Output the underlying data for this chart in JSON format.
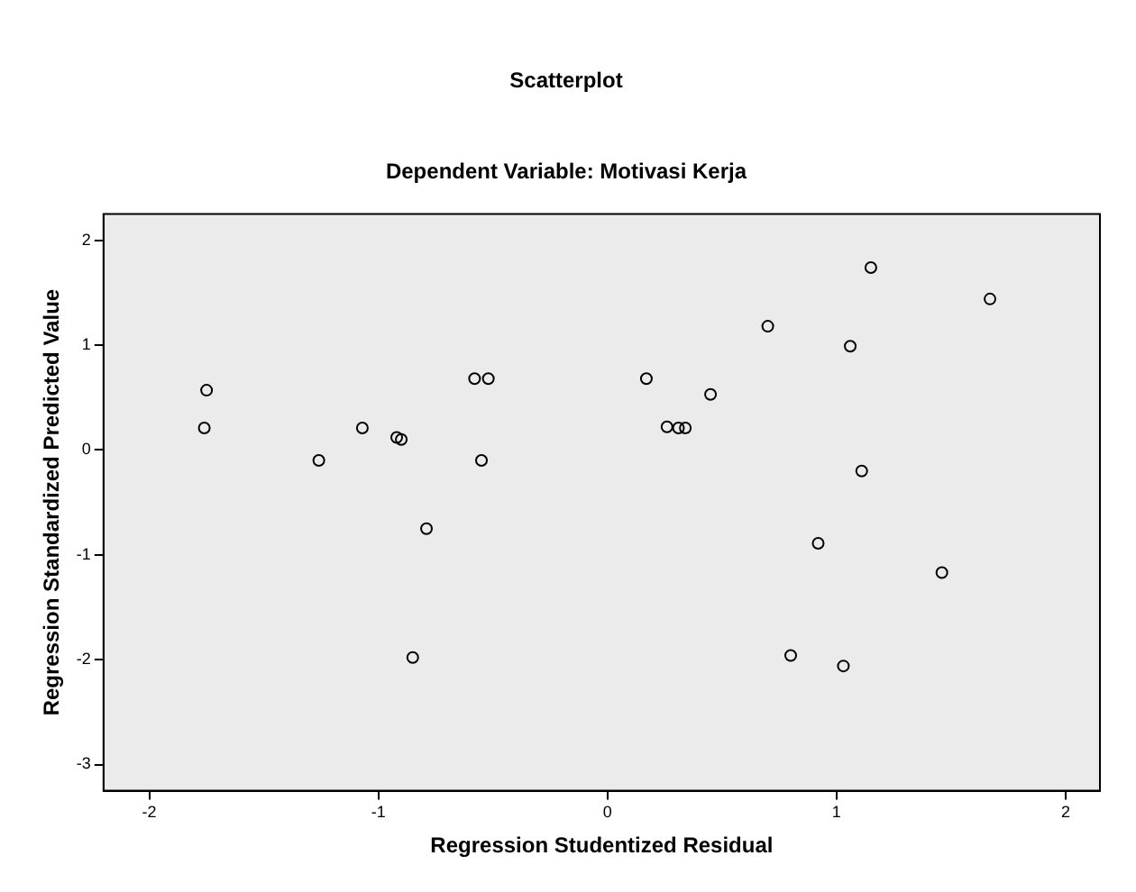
{
  "chart_data": {
    "type": "scatter",
    "title": "Scatterplot",
    "subtitle": "Dependent Variable: Motivasi Kerja",
    "xlabel": "Regression Studentized Residual",
    "ylabel": "Regression Standardized Predicted Value",
    "x": [
      -1.75,
      -1.76,
      -1.26,
      -1.07,
      -0.92,
      -0.9,
      -0.79,
      -0.85,
      -0.58,
      -0.52,
      -0.55,
      0.17,
      0.26,
      0.31,
      0.34,
      0.45,
      0.7,
      0.8,
      0.92,
      1.06,
      1.03,
      1.11,
      1.15,
      1.46,
      1.67
    ],
    "values": [
      0.57,
      0.21,
      -0.1,
      0.21,
      0.12,
      0.1,
      -0.75,
      -1.98,
      0.68,
      0.68,
      -0.1,
      0.68,
      0.22,
      0.21,
      0.21,
      0.53,
      1.18,
      -1.96,
      -0.89,
      0.99,
      -2.06,
      -0.2,
      1.74,
      -1.17,
      1.44
    ],
    "color": "#000000",
    "marker": "circle",
    "xlim": [
      -2.2,
      2.15
    ],
    "ylim": [
      -3.25,
      2.25
    ],
    "xticks": [
      -2,
      -1,
      0,
      1,
      2
    ],
    "yticks": [
      -3,
      -2,
      -1,
      0,
      1,
      2
    ],
    "grid": false,
    "legend": false
  }
}
